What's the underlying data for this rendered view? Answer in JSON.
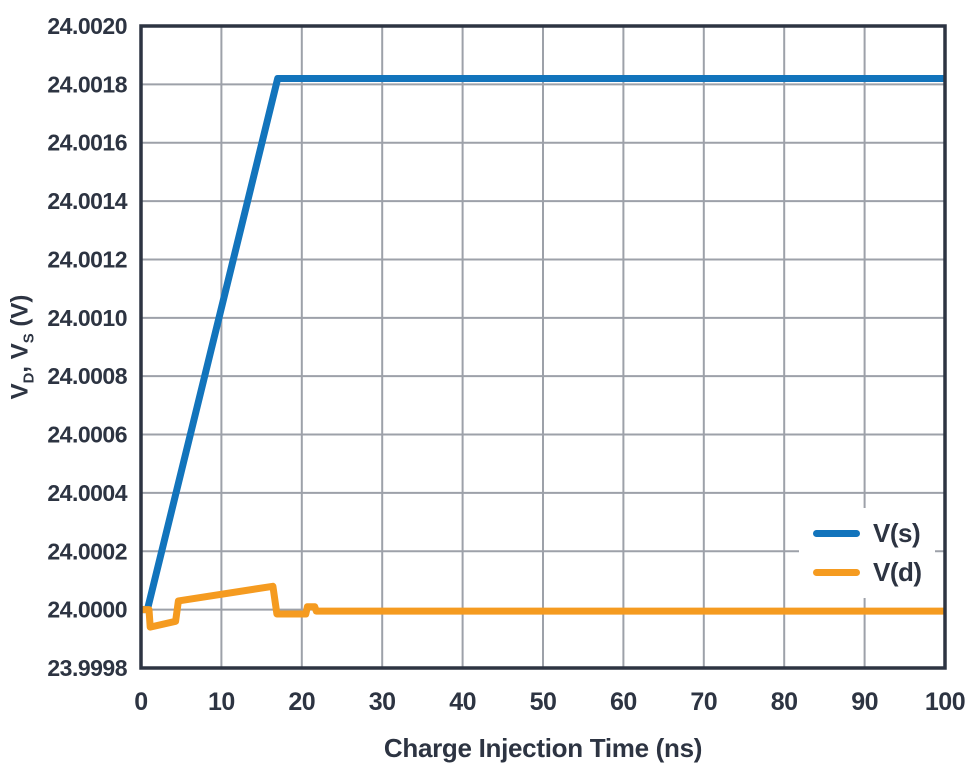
{
  "chart_data": {
    "type": "line",
    "title": "",
    "xlabel": "Charge Injection Time (ns)",
    "ylabel": "VD, VS (V)",
    "ylabel_parts": {
      "base1": "V",
      "sub1": "D",
      "base2": ", V",
      "sub2": "S",
      "base3": " (V)"
    },
    "xlim": [
      0,
      100
    ],
    "ylim": [
      23.9998,
      24.002
    ],
    "grid": true,
    "legend_position": "right-center",
    "x_ticks": {
      "values": [
        0,
        10,
        20,
        30,
        40,
        50,
        60,
        70,
        80,
        90,
        100
      ],
      "labels": [
        "0",
        "10",
        "20",
        "30",
        "40",
        "50",
        "60",
        "70",
        "80",
        "90",
        "100"
      ]
    },
    "y_ticks": {
      "values": [
        23.9998,
        24.0,
        24.0002,
        24.0004,
        24.0006,
        24.0008,
        24.001,
        24.0012,
        24.0014,
        24.0016,
        24.0018,
        24.002
      ],
      "labels": [
        "23.9998",
        "24.0000",
        "24.0002",
        "24.0004",
        "24.0006",
        "24.0008",
        "24.0010",
        "24.0012",
        "24.0014",
        "24.0016",
        "24.0018",
        "24.0020"
      ]
    },
    "series": [
      {
        "name": "V(s)",
        "color": "#1274BC",
        "points": [
          [
            0,
            24.0
          ],
          [
            0.8,
            24.0
          ],
          [
            17,
            24.00182
          ],
          [
            100,
            24.00182
          ]
        ]
      },
      {
        "name": "V(d)",
        "color": "#F59B20",
        "points": [
          [
            0,
            24.0
          ],
          [
            1.0,
            24.0
          ],
          [
            1.15,
            23.99994
          ],
          [
            4.3,
            23.99996
          ],
          [
            4.65,
            24.00003
          ],
          [
            16.4,
            24.00008
          ],
          [
            16.9,
            23.999985
          ],
          [
            20.5,
            23.999985
          ],
          [
            20.7,
            24.00001
          ],
          [
            21.6,
            24.00001
          ],
          [
            21.8,
            23.999995
          ],
          [
            100,
            23.999995
          ]
        ]
      }
    ],
    "colors": {
      "frame": "#2d3442",
      "grid": "#9da1a9",
      "text": "#2d3442",
      "background": "#ffffff"
    }
  }
}
